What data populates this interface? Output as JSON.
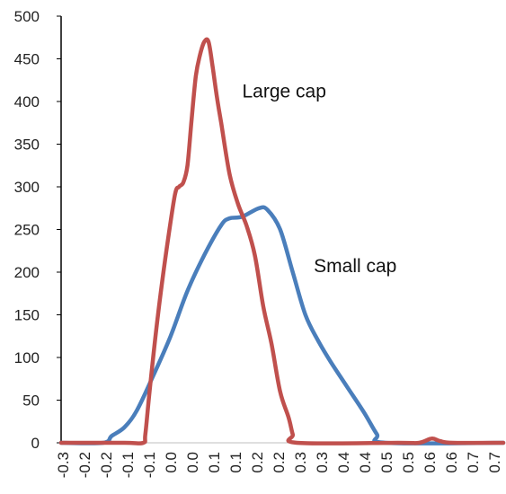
{
  "chart_data": {
    "type": "line",
    "title": "",
    "xlabel": "",
    "ylabel": "",
    "ylim": [
      0,
      500
    ],
    "yticks": [
      0,
      50,
      100,
      150,
      200,
      250,
      300,
      350,
      400,
      450,
      500
    ],
    "xlim": [
      -0.3,
      0.75
    ],
    "xtick_labels": [
      "-0.3",
      "-0.2",
      "-0.2",
      "-0.1",
      "-0.1",
      "0.0",
      "0.0",
      "0.1",
      "0.1",
      "0.2",
      "0.2",
      "0.3",
      "0.3",
      "0.4",
      "0.4",
      "0.5",
      "0.5",
      "0.6",
      "0.6",
      "0.7",
      "0.7"
    ],
    "grid": false,
    "series": [
      {
        "name": "Large cap",
        "color": "#c0504d",
        "points": [
          [
            -0.3,
            0
          ],
          [
            -0.15,
            0
          ],
          [
            -0.105,
            0
          ],
          [
            -0.1,
            10
          ],
          [
            -0.09,
            60
          ],
          [
            -0.07,
            150
          ],
          [
            -0.05,
            225
          ],
          [
            -0.03,
            290
          ],
          [
            -0.02,
            300
          ],
          [
            -0.01,
            305
          ],
          [
            0.0,
            325
          ],
          [
            0.01,
            380
          ],
          [
            0.02,
            430
          ],
          [
            0.03,
            455
          ],
          [
            0.04,
            470
          ],
          [
            0.05,
            470
          ],
          [
            0.06,
            440
          ],
          [
            0.07,
            405
          ],
          [
            0.08,
            375
          ],
          [
            0.1,
            315
          ],
          [
            0.12,
            280
          ],
          [
            0.14,
            255
          ],
          [
            0.16,
            220
          ],
          [
            0.18,
            160
          ],
          [
            0.2,
            115
          ],
          [
            0.22,
            60
          ],
          [
            0.24,
            30
          ],
          [
            0.25,
            10
          ],
          [
            0.26,
            0
          ],
          [
            0.5,
            0
          ],
          [
            0.55,
            0
          ],
          [
            0.58,
            5
          ],
          [
            0.6,
            2
          ],
          [
            0.63,
            0
          ],
          [
            0.75,
            0
          ]
        ]
      },
      {
        "name": "Small cap",
        "color": "#4a7ebb",
        "points": [
          [
            -0.3,
            0
          ],
          [
            -0.2,
            0
          ],
          [
            -0.18,
            8
          ],
          [
            -0.15,
            18
          ],
          [
            -0.12,
            38
          ],
          [
            -0.08,
            80
          ],
          [
            -0.04,
            125
          ],
          [
            0.0,
            178
          ],
          [
            0.04,
            220
          ],
          [
            0.08,
            255
          ],
          [
            0.1,
            263
          ],
          [
            0.13,
            265
          ],
          [
            0.17,
            275
          ],
          [
            0.19,
            273
          ],
          [
            0.22,
            250
          ],
          [
            0.25,
            200
          ],
          [
            0.28,
            150
          ],
          [
            0.31,
            120
          ],
          [
            0.34,
            95
          ],
          [
            0.38,
            65
          ],
          [
            0.42,
            35
          ],
          [
            0.45,
            10
          ],
          [
            0.47,
            0
          ],
          [
            0.75,
            0
          ]
        ]
      }
    ],
    "annotations": [
      {
        "text": "Large cap",
        "x": 0.13,
        "y": 405
      },
      {
        "text": "Small cap",
        "x": 0.3,
        "y": 200
      }
    ]
  }
}
